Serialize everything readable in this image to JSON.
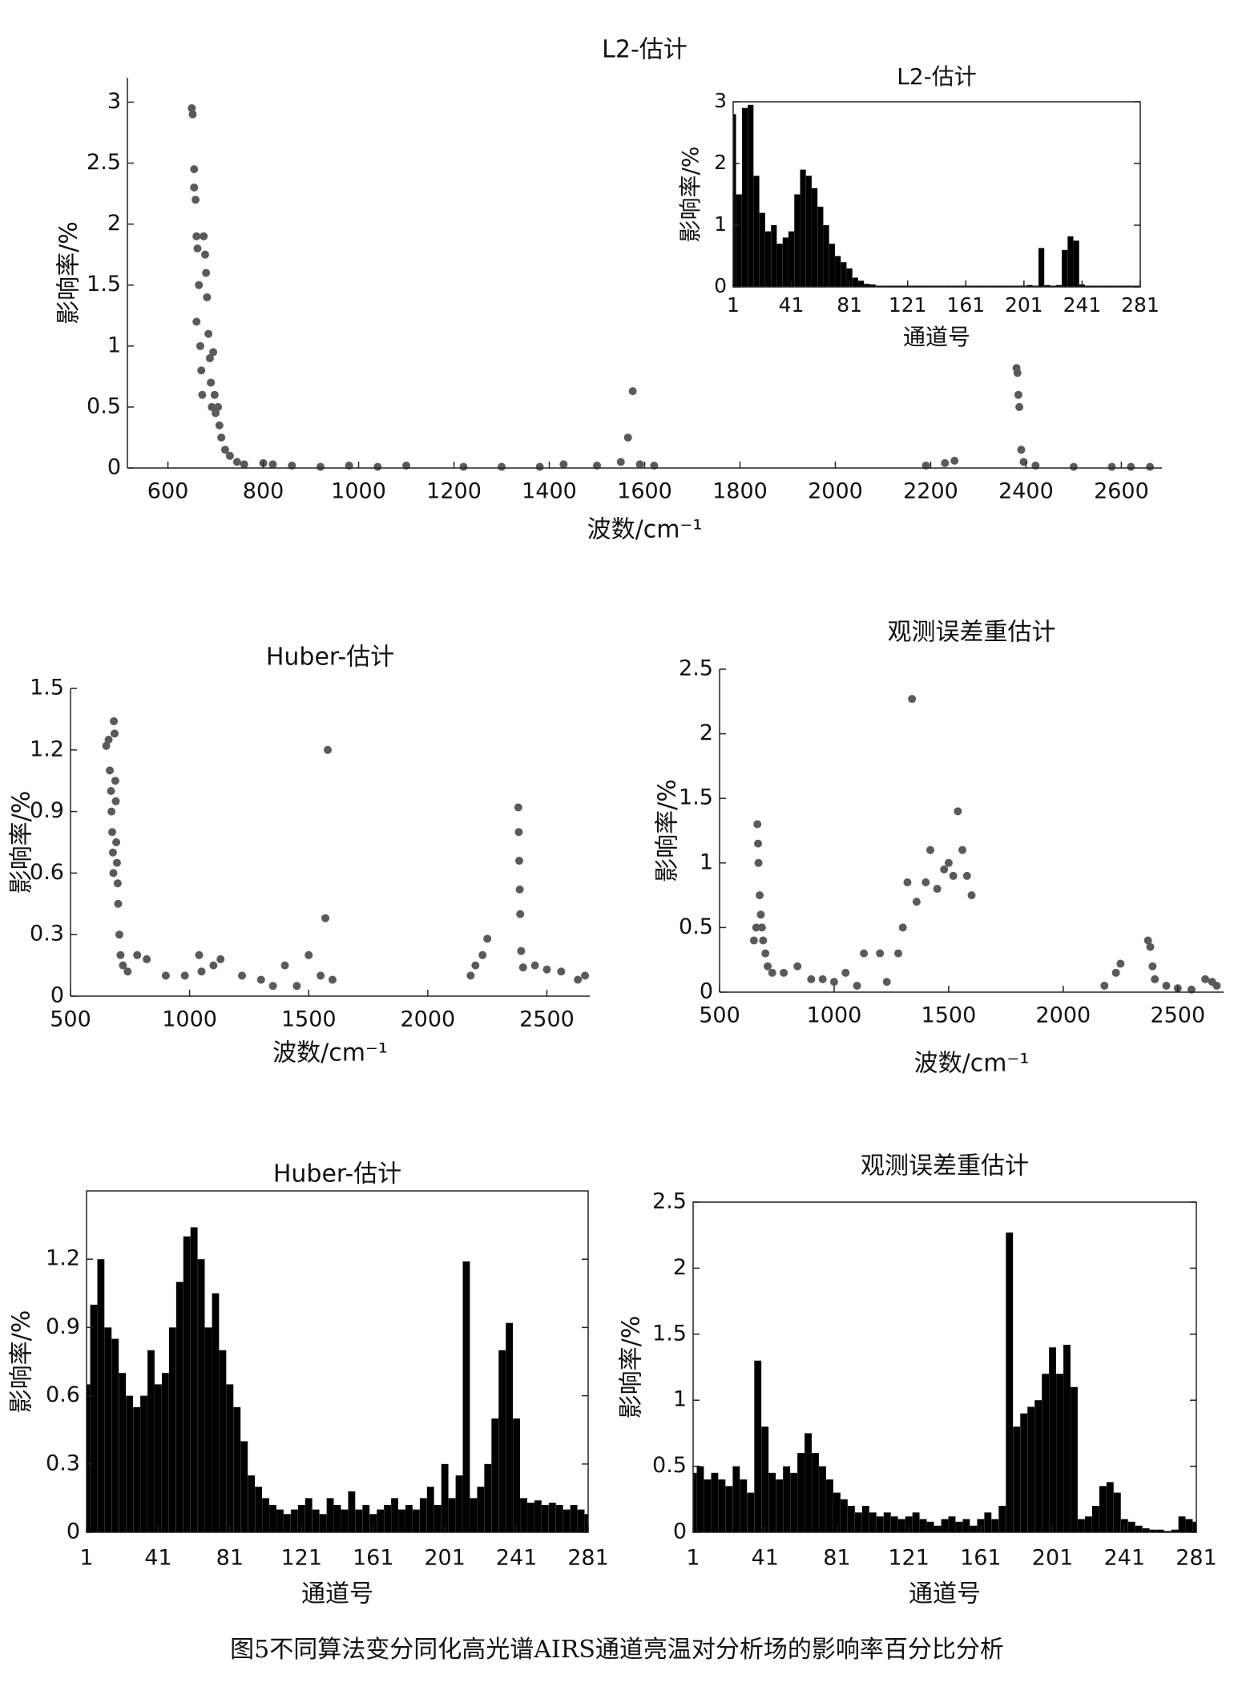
{
  "chart_data": [
    {
      "type": "scatter",
      "title": "L2-估计",
      "xlabel": "波数/cm⁻¹",
      "ylabel": "影响率/%",
      "color": "#5a5a5a",
      "x": [
        650,
        652,
        655,
        655,
        658,
        660,
        662,
        665,
        660,
        668,
        670,
        672,
        675,
        678,
        680,
        682,
        685,
        688,
        690,
        692,
        695,
        698,
        700,
        705,
        708,
        712,
        720,
        730,
        745,
        760,
        800,
        820,
        860,
        920,
        980,
        1040,
        1100,
        1220,
        1300,
        1380,
        1430,
        1500,
        1550,
        1565,
        1575,
        1590,
        1620,
        2190,
        2230,
        2250,
        2380,
        2382,
        2384,
        2386,
        2390,
        2395,
        2420,
        2500,
        2580,
        2620,
        2660
      ],
      "values": [
        2.95,
        2.9,
        2.45,
        2.3,
        2.2,
        1.9,
        1.8,
        1.5,
        1.2,
        1.0,
        0.8,
        0.6,
        1.9,
        1.75,
        1.6,
        1.4,
        1.1,
        0.9,
        0.7,
        0.5,
        0.95,
        0.6,
        0.45,
        0.5,
        0.35,
        0.25,
        0.15,
        0.1,
        0.05,
        0.03,
        0.04,
        0.03,
        0.02,
        0.01,
        0.02,
        0.01,
        0.02,
        0.01,
        0.01,
        0.01,
        0.03,
        0.02,
        0.05,
        0.25,
        0.63,
        0.03,
        0.02,
        0.02,
        0.04,
        0.06,
        0.82,
        0.78,
        0.6,
        0.5,
        0.15,
        0.05,
        0.02,
        0.01,
        0.01,
        0.01,
        0.01
      ],
      "xlim": [
        515,
        2685
      ],
      "ylim": [
        0,
        3.2
      ],
      "xticks": [
        600,
        800,
        1000,
        1200,
        1400,
        1600,
        1800,
        2000,
        2200,
        2400,
        2600
      ],
      "yticks": [
        0,
        0.5,
        1,
        1.5,
        2,
        2.5,
        3
      ]
    },
    {
      "type": "bar",
      "title": "L2-估计",
      "xlabel": "通道号",
      "ylabel": "影响率/%",
      "color": "#000000",
      "x": [
        1,
        5,
        9,
        13,
        17,
        21,
        25,
        29,
        33,
        37,
        41,
        45,
        49,
        53,
        57,
        61,
        65,
        69,
        73,
        77,
        81,
        85,
        89,
        93,
        97,
        101,
        105,
        109,
        113,
        117,
        121,
        125,
        129,
        133,
        137,
        141,
        145,
        149,
        153,
        157,
        161,
        165,
        169,
        173,
        177,
        181,
        185,
        189,
        193,
        197,
        201,
        205,
        209,
        213,
        217,
        221,
        225,
        229,
        233,
        237,
        241,
        245,
        249,
        253,
        257,
        261,
        265,
        269,
        273,
        277,
        281
      ],
      "values": [
        2.8,
        1.5,
        2.9,
        2.95,
        1.8,
        1.2,
        0.9,
        1.0,
        0.7,
        0.8,
        0.9,
        1.5,
        1.9,
        1.8,
        1.6,
        1.3,
        1.0,
        0.7,
        0.5,
        0.4,
        0.3,
        0.15,
        0.1,
        0.05,
        0.04,
        0.02,
        0.02,
        0.02,
        0.02,
        0.02,
        0.02,
        0.02,
        0.02,
        0.02,
        0.02,
        0.02,
        0.02,
        0.02,
        0.02,
        0.02,
        0.02,
        0.02,
        0.02,
        0.02,
        0.02,
        0.02,
        0.02,
        0.02,
        0.02,
        0.02,
        0.02,
        0.03,
        0.02,
        0.63,
        0.03,
        0.02,
        0.03,
        0.6,
        0.82,
        0.75,
        0.04,
        0.02,
        0.02,
        0.02,
        0.02,
        0.02,
        0.02,
        0.02,
        0.02,
        0.02,
        0.02
      ],
      "xlim": [
        1,
        281
      ],
      "ylim": [
        0,
        3
      ],
      "xticks": [
        1,
        41,
        81,
        121,
        161,
        201,
        241,
        281
      ],
      "yticks": [
        0,
        1,
        2,
        3
      ]
    },
    {
      "type": "scatter",
      "title": "Huber-估计",
      "xlabel": "波数/cm⁻¹",
      "ylabel": "影响率/%",
      "color": "#5a5a5a",
      "x": [
        650,
        660,
        665,
        670,
        672,
        675,
        678,
        680,
        682,
        685,
        688,
        690,
        692,
        695,
        698,
        700,
        705,
        710,
        720,
        740,
        780,
        820,
        900,
        980,
        1040,
        1050,
        1100,
        1130,
        1220,
        1300,
        1350,
        1400,
        1450,
        1500,
        1550,
        1570,
        1580,
        1600,
        2180,
        2200,
        2230,
        2250,
        2380,
        2382,
        2384,
        2386,
        2388,
        2392,
        2400,
        2450,
        2500,
        2560,
        2630,
        2660
      ],
      "values": [
        1.22,
        1.25,
        1.1,
        1.0,
        0.9,
        0.8,
        0.7,
        0.6,
        1.34,
        1.28,
        1.05,
        0.95,
        0.75,
        0.65,
        0.55,
        0.45,
        0.3,
        0.2,
        0.15,
        0.12,
        0.2,
        0.18,
        0.1,
        0.1,
        0.2,
        0.12,
        0.15,
        0.18,
        0.1,
        0.08,
        0.05,
        0.15,
        0.05,
        0.2,
        0.1,
        0.38,
        1.2,
        0.08,
        0.1,
        0.15,
        0.2,
        0.28,
        0.92,
        0.8,
        0.66,
        0.52,
        0.4,
        0.22,
        0.14,
        0.15,
        0.13,
        0.12,
        0.08,
        0.1
      ],
      "xlim": [
        500,
        2680
      ],
      "ylim": [
        0,
        1.5
      ],
      "xticks": [
        500,
        1000,
        1500,
        2000,
        2500
      ],
      "yticks": [
        0,
        0.3,
        0.6,
        0.9,
        1.2,
        1.5
      ]
    },
    {
      "type": "scatter",
      "title": "观测误差重估计",
      "xlabel": "波数/cm⁻¹",
      "ylabel": "影响率/%",
      "color": "#5a5a5a",
      "x": [
        650,
        660,
        665,
        668,
        670,
        675,
        680,
        685,
        690,
        700,
        710,
        730,
        780,
        840,
        900,
        950,
        1000,
        1050,
        1100,
        1130,
        1200,
        1230,
        1280,
        1300,
        1320,
        1340,
        1360,
        1400,
        1420,
        1450,
        1480,
        1500,
        1520,
        1540,
        1560,
        1580,
        1600,
        2180,
        2230,
        2250,
        2370,
        2380,
        2390,
        2400,
        2450,
        2500,
        2560,
        2620,
        2650,
        2670
      ],
      "values": [
        0.4,
        0.5,
        1.3,
        1.15,
        1.0,
        0.75,
        0.6,
        0.5,
        0.4,
        0.3,
        0.2,
        0.15,
        0.15,
        0.2,
        0.1,
        0.1,
        0.08,
        0.15,
        0.05,
        0.3,
        0.3,
        0.08,
        0.3,
        0.5,
        0.85,
        2.27,
        0.7,
        0.85,
        1.1,
        0.8,
        0.95,
        1.0,
        0.9,
        1.4,
        1.1,
        0.9,
        0.75,
        0.05,
        0.15,
        0.22,
        0.4,
        0.35,
        0.2,
        0.1,
        0.05,
        0.03,
        0.02,
        0.1,
        0.08,
        0.05
      ],
      "xlim": [
        500,
        2700
      ],
      "ylim": [
        0,
        2.5
      ],
      "xticks": [
        500,
        1000,
        1500,
        2000,
        2500
      ],
      "yticks": [
        0,
        0.5,
        1,
        1.5,
        2,
        2.5
      ]
    },
    {
      "type": "bar",
      "title": "Huber-估计",
      "xlabel": "通道号",
      "ylabel": "影响率/%",
      "color": "#000000",
      "x": [
        1,
        5,
        9,
        13,
        17,
        21,
        25,
        29,
        33,
        37,
        41,
        45,
        49,
        53,
        57,
        61,
        65,
        69,
        73,
        77,
        81,
        85,
        89,
        93,
        97,
        101,
        105,
        109,
        113,
        117,
        121,
        125,
        129,
        133,
        137,
        141,
        145,
        149,
        153,
        157,
        161,
        165,
        169,
        173,
        177,
        181,
        185,
        189,
        193,
        197,
        201,
        205,
        209,
        213,
        217,
        221,
        225,
        229,
        233,
        237,
        241,
        245,
        249,
        253,
        257,
        261,
        265,
        269,
        273,
        277,
        281
      ],
      "values": [
        0.65,
        1.0,
        1.2,
        0.9,
        0.85,
        0.7,
        0.6,
        0.55,
        0.6,
        0.8,
        0.65,
        0.7,
        0.9,
        1.1,
        1.3,
        1.34,
        1.2,
        0.9,
        1.05,
        0.8,
        0.65,
        0.55,
        0.4,
        0.25,
        0.2,
        0.15,
        0.12,
        0.1,
        0.08,
        0.1,
        0.12,
        0.15,
        0.1,
        0.08,
        0.15,
        0.12,
        0.1,
        0.18,
        0.1,
        0.12,
        0.08,
        0.1,
        0.12,
        0.15,
        0.1,
        0.12,
        0.1,
        0.15,
        0.2,
        0.12,
        0.3,
        0.15,
        0.25,
        1.19,
        0.15,
        0.2,
        0.3,
        0.5,
        0.8,
        0.92,
        0.5,
        0.15,
        0.13,
        0.14,
        0.12,
        0.13,
        0.12,
        0.1,
        0.12,
        0.1,
        0.08
      ],
      "xlim": [
        1,
        281
      ],
      "ylim": [
        0,
        1.5
      ],
      "xticks": [
        1,
        41,
        81,
        121,
        161,
        201,
        241,
        281
      ],
      "yticks": [
        0,
        0.3,
        0.6,
        0.9,
        1.2
      ]
    },
    {
      "type": "bar",
      "title": "观测误差重估计",
      "xlabel": "通道号",
      "ylabel": "影响率/%",
      "color": "#000000",
      "x": [
        1,
        5,
        9,
        13,
        17,
        21,
        25,
        29,
        33,
        37,
        41,
        45,
        49,
        53,
        57,
        61,
        65,
        69,
        73,
        77,
        81,
        85,
        89,
        93,
        97,
        101,
        105,
        109,
        113,
        117,
        121,
        125,
        129,
        133,
        137,
        141,
        145,
        149,
        153,
        157,
        161,
        165,
        169,
        173,
        177,
        181,
        185,
        189,
        193,
        197,
        201,
        205,
        209,
        213,
        217,
        221,
        225,
        229,
        233,
        237,
        241,
        245,
        249,
        253,
        257,
        261,
        265,
        269,
        273,
        277,
        281
      ],
      "values": [
        0.45,
        0.5,
        0.4,
        0.45,
        0.4,
        0.35,
        0.5,
        0.4,
        0.3,
        1.3,
        0.8,
        0.45,
        0.4,
        0.5,
        0.45,
        0.6,
        0.75,
        0.6,
        0.5,
        0.4,
        0.3,
        0.25,
        0.2,
        0.15,
        0.2,
        0.15,
        0.12,
        0.15,
        0.12,
        0.1,
        0.12,
        0.15,
        0.1,
        0.08,
        0.05,
        0.1,
        0.12,
        0.08,
        0.1,
        0.05,
        0.1,
        0.15,
        0.1,
        0.2,
        2.27,
        0.8,
        0.9,
        0.95,
        1.0,
        1.2,
        1.4,
        1.2,
        1.42,
        1.1,
        0.1,
        0.12,
        0.2,
        0.35,
        0.38,
        0.3,
        0.1,
        0.08,
        0.05,
        0.03,
        0.02,
        0.02,
        0.01,
        0.02,
        0.12,
        0.1,
        0.08
      ],
      "xlim": [
        1,
        281
      ],
      "ylim": [
        0,
        2.5
      ],
      "xticks": [
        1,
        41,
        81,
        121,
        161,
        201,
        241,
        281
      ],
      "yticks": [
        0,
        0.5,
        1,
        1.5,
        2,
        2.5
      ]
    }
  ],
  "caption": "图5不同算法变分同化高光谱AIRS通道亮温对分析场的影响率百分比分析"
}
